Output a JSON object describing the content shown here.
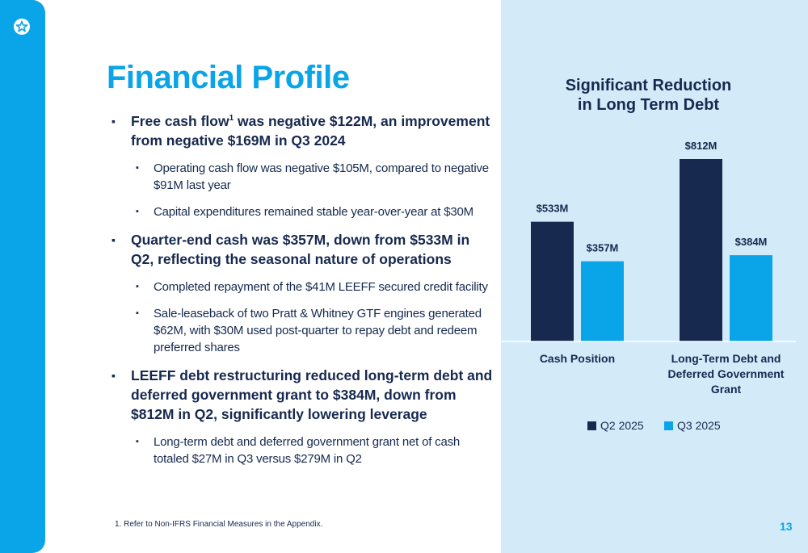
{
  "title": "Financial Profile",
  "bullets": {
    "b1_main": "Free cash flow",
    "b1_sup": "1",
    "b1_rest": " was negative $122M, an improvement from negative $169M in Q3 2024",
    "b1_sub1": "Operating cash flow was negative $105M, compared to negative $91M last year",
    "b1_sub2": "Capital expenditures remained stable year-over-year at $30M",
    "b2_main": "Quarter-end cash was $357M, down from $533M in Q2, reflecting the seasonal nature of operations",
    "b2_sub1": "Completed repayment of the $41M LEEFF secured credit facility",
    "b2_sub2": "Sale-leaseback of two Pratt & Whitney GTF engines generated $62M, with $30M used post-quarter to repay debt and redeem preferred shares",
    "b3_main": "LEEFF debt restructuring reduced long-term debt and deferred government grant to $384M, down from $812M in Q2, significantly lowering leverage",
    "b3_sub1": "Long-term debt and deferred government grant net of cash totaled $27M in Q3 versus $279M in Q2"
  },
  "footnote": "1.    Refer to Non-IFRS Financial Measures in the Appendix.",
  "page_number": "13",
  "colors": {
    "accent": "#0aa5e8",
    "navy": "#17294f",
    "panel": "#d3ebf9"
  },
  "chart_data": {
    "type": "bar",
    "title_lines": [
      "Significant Reduction",
      "in Long Term Debt"
    ],
    "categories": [
      [
        "Cash Position"
      ],
      [
        "Long-Term Debt and",
        "Deferred Government",
        "Grant"
      ]
    ],
    "series": [
      {
        "name": "Q2 2025",
        "color": "#17294f",
        "values": [
          533,
          812
        ],
        "labels": [
          "$533M",
          "$812M"
        ]
      },
      {
        "name": "Q3 2025",
        "color": "#0aa5e8",
        "values": [
          357,
          384
        ],
        "labels": [
          "$357M",
          "$384M"
        ]
      }
    ],
    "ylim": [
      0,
      812
    ],
    "legend": "bottom-center"
  }
}
